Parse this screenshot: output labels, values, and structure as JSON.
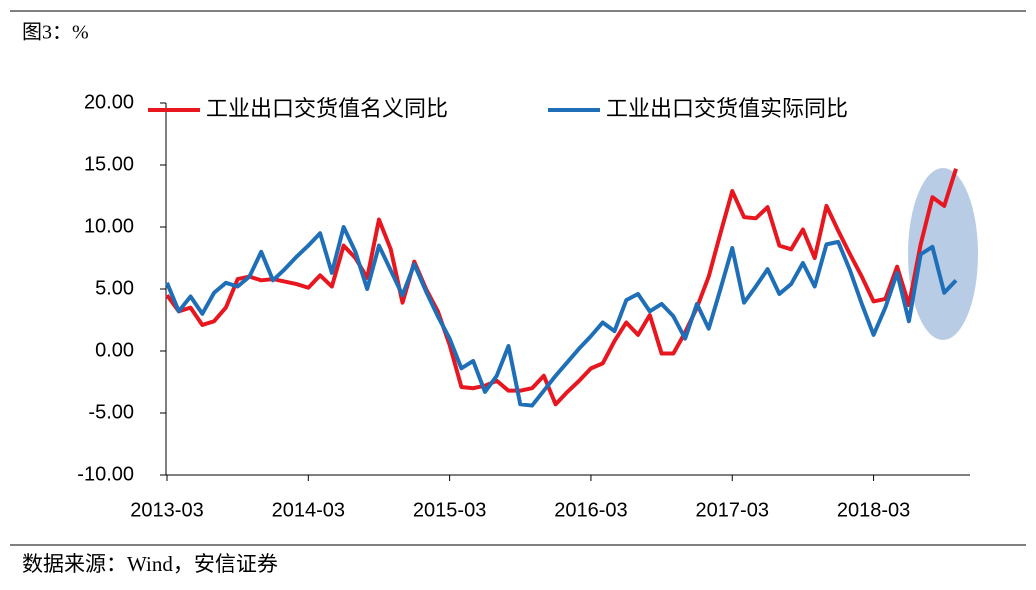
{
  "header": "图3：%",
  "footer": "数据来源：Wind，安信证券",
  "chart_data": {
    "type": "line",
    "categories": [
      "2013-03",
      null,
      null,
      null,
      null,
      null,
      null,
      null,
      null,
      null,
      null,
      null,
      "2014-03",
      null,
      null,
      null,
      null,
      null,
      null,
      null,
      null,
      null,
      null,
      null,
      "2015-03",
      null,
      null,
      null,
      null,
      null,
      null,
      null,
      null,
      null,
      null,
      null,
      "2016-03",
      null,
      null,
      null,
      null,
      null,
      null,
      null,
      null,
      null,
      null,
      null,
      "2017-03",
      null,
      null,
      null,
      null,
      null,
      null,
      null,
      null,
      null,
      null,
      null,
      "2018-03",
      null,
      null,
      null,
      null,
      null,
      null,
      null
    ],
    "series": [
      {
        "name": "工业出口交货值名义同比",
        "color": "#e8161f",
        "values": [
          4.5,
          3.2,
          3.5,
          2.1,
          2.4,
          3.5,
          5.8,
          6.0,
          5.7,
          5.8,
          5.6,
          5.4,
          5.1,
          6.1,
          5.2,
          8.5,
          7.5,
          5.9,
          10.6,
          8.2,
          3.9,
          7.2,
          5.0,
          3.2,
          0.5,
          -2.9,
          -3.0,
          -2.8,
          -2.4,
          -3.2,
          -3.2,
          -3.0,
          -2.0,
          -4.3,
          -3.3,
          -2.4,
          -1.4,
          -1.0,
          0.8,
          2.3,
          1.3,
          2.9,
          -0.2,
          -0.2,
          1.5,
          3.5,
          6.0,
          9.5,
          12.9,
          10.8,
          10.7,
          11.6,
          8.5,
          8.2,
          9.8,
          7.5,
          11.7,
          9.7,
          7.8,
          6.0,
          4.0,
          4.2,
          6.8,
          3.7,
          8.6,
          12.4,
          11.7,
          14.7
        ]
      },
      {
        "name": "工业出口交货值实际同比",
        "color": "#1f6fb8",
        "values": [
          5.5,
          3.2,
          4.4,
          3.0,
          4.7,
          5.5,
          5.2,
          6.0,
          8.0,
          5.7,
          6.6,
          7.6,
          8.5,
          9.5,
          6.3,
          10.0,
          8.0,
          5.0,
          8.5,
          6.5,
          4.5,
          7.0,
          4.8,
          2.8,
          1.0,
          -1.4,
          -0.8,
          -3.3,
          -2.0,
          0.4,
          -4.3,
          -4.4,
          -3.2,
          -2.0,
          -0.9,
          0.2,
          1.2,
          2.3,
          1.6,
          4.1,
          4.6,
          3.2,
          3.8,
          2.8,
          1.0,
          3.8,
          1.8,
          5.0,
          8.3,
          3.9,
          5.2,
          6.6,
          4.6,
          5.4,
          7.1,
          5.2,
          8.6,
          8.8,
          6.5,
          3.8,
          1.3,
          3.5,
          6.3,
          2.4,
          7.8,
          8.4,
          4.7,
          5.7
        ]
      }
    ],
    "ylim": [
      -10,
      20
    ],
    "yticks": [
      {
        "value": -10,
        "label": "-10.00"
      },
      {
        "value": -5,
        "label": "-5.00"
      },
      {
        "value": 0,
        "label": "0.00"
      },
      {
        "value": 5,
        "label": "5.00"
      },
      {
        "value": 10,
        "label": "10.00"
      },
      {
        "value": 15,
        "label": "15.00"
      },
      {
        "value": 20,
        "label": "20.00"
      }
    ],
    "legend": "top"
  }
}
